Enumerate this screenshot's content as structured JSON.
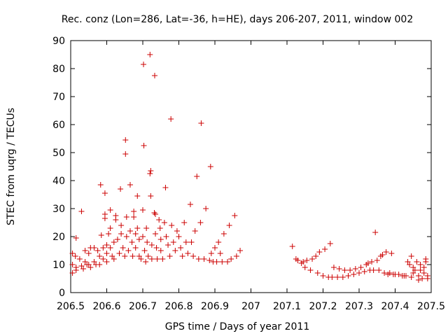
{
  "chart_data": {
    "type": "scatter",
    "title": "Rec. conz (Lon=286, Lat=-36, h=HE), days 206-207, 2011, window 002",
    "xlabel": "GPS time / Days of year 2011",
    "ylabel": "STEC from uqrg / TECUs",
    "xlim": [
      206.5,
      207.5
    ],
    "ylim": [
      0,
      90
    ],
    "xticks": [
      "206.5",
      "206.6",
      "206.7",
      "206.8",
      "206.9",
      "207",
      "207.1",
      "207.2",
      "207.3",
      "207.4",
      "207.5"
    ],
    "yticks": [
      "0",
      "10",
      "20",
      "30",
      "40",
      "50",
      "60",
      "70",
      "80",
      "90"
    ],
    "marker": "+",
    "color": "#cc0000",
    "grid": false,
    "series": [
      {
        "points": [
          [
            206.505,
            14
          ],
          [
            206.505,
            10
          ],
          [
            206.505,
            7
          ],
          [
            206.513,
            13
          ],
          [
            206.515,
            19.5
          ],
          [
            206.515,
            9
          ],
          [
            206.515,
            8
          ],
          [
            206.525,
            12
          ],
          [
            206.53,
            29
          ],
          [
            206.53,
            9.5
          ],
          [
            206.535,
            8.5
          ],
          [
            206.54,
            15
          ],
          [
            206.54,
            11
          ],
          [
            206.545,
            10
          ],
          [
            206.55,
            14
          ],
          [
            206.55,
            10
          ],
          [
            206.555,
            16
          ],
          [
            206.555,
            9
          ],
          [
            206.565,
            16
          ],
          [
            206.565,
            11
          ],
          [
            206.57,
            10
          ],
          [
            206.575,
            15
          ],
          [
            206.58,
            13
          ],
          [
            206.58,
            10
          ],
          [
            206.583,
            38.5
          ],
          [
            206.585,
            20.5
          ],
          [
            206.59,
            12
          ],
          [
            206.59,
            16
          ],
          [
            206.595,
            35.5
          ],
          [
            206.595,
            26.5
          ],
          [
            206.595,
            28
          ],
          [
            206.6,
            17
          ],
          [
            206.6,
            14
          ],
          [
            206.6,
            11
          ],
          [
            206.605,
            21
          ],
          [
            206.61,
            29.5
          ],
          [
            206.61,
            23
          ],
          [
            206.61,
            16
          ],
          [
            206.615,
            13
          ],
          [
            206.62,
            18
          ],
          [
            206.62,
            12
          ],
          [
            206.625,
            26
          ],
          [
            206.625,
            27.5
          ],
          [
            206.63,
            19
          ],
          [
            206.635,
            14
          ],
          [
            206.638,
            37
          ],
          [
            206.64,
            24
          ],
          [
            206.64,
            21
          ],
          [
            206.645,
            16
          ],
          [
            206.65,
            13
          ],
          [
            206.652,
            54.5
          ],
          [
            206.652,
            49.5
          ],
          [
            206.655,
            27
          ],
          [
            206.655,
            20
          ],
          [
            206.66,
            15
          ],
          [
            206.665,
            38.5
          ],
          [
            206.665,
            22
          ],
          [
            206.67,
            18
          ],
          [
            206.672,
            13
          ],
          [
            206.675,
            29
          ],
          [
            206.675,
            27
          ],
          [
            206.68,
            21
          ],
          [
            206.68,
            16
          ],
          [
            206.685,
            34.5
          ],
          [
            206.685,
            23
          ],
          [
            206.69,
            19
          ],
          [
            206.69,
            13
          ],
          [
            206.695,
            12
          ],
          [
            206.7,
            29.5
          ],
          [
            206.7,
            20
          ],
          [
            206.702,
            81.5
          ],
          [
            206.703,
            52.5
          ],
          [
            206.705,
            15
          ],
          [
            206.708,
            11
          ],
          [
            206.71,
            23
          ],
          [
            206.712,
            18
          ],
          [
            206.715,
            13
          ],
          [
            206.72,
            85
          ],
          [
            206.72,
            42.5
          ],
          [
            206.722,
            43.5
          ],
          [
            206.722,
            34.5
          ],
          [
            206.725,
            17
          ],
          [
            206.725,
            12
          ],
          [
            206.732,
            28.5
          ],
          [
            206.733,
            77.5
          ],
          [
            206.735,
            28
          ],
          [
            206.735,
            21
          ],
          [
            206.738,
            16
          ],
          [
            206.74,
            12
          ],
          [
            206.745,
            26
          ],
          [
            206.748,
            23
          ],
          [
            206.75,
            19
          ],
          [
            206.75,
            15
          ],
          [
            206.755,
            12
          ],
          [
            206.76,
            25
          ],
          [
            206.763,
            37.5
          ],
          [
            206.765,
            20
          ],
          [
            206.77,
            17
          ],
          [
            206.775,
            13
          ],
          [
            206.778,
            62
          ],
          [
            206.78,
            24
          ],
          [
            206.785,
            18
          ],
          [
            206.79,
            15
          ],
          [
            206.795,
            22
          ],
          [
            206.8,
            20
          ],
          [
            206.805,
            16
          ],
          [
            206.81,
            13
          ],
          [
            206.815,
            25
          ],
          [
            206.82,
            18
          ],
          [
            206.825,
            14
          ],
          [
            206.832,
            31.5
          ],
          [
            206.835,
            18
          ],
          [
            206.84,
            13
          ],
          [
            206.845,
            22
          ],
          [
            206.85,
            41.5
          ],
          [
            206.855,
            12
          ],
          [
            206.86,
            25
          ],
          [
            206.862,
            60.5
          ],
          [
            206.87,
            12
          ],
          [
            206.875,
            30
          ],
          [
            206.885,
            11.5
          ],
          [
            206.888,
            45
          ],
          [
            206.89,
            14
          ],
          [
            206.895,
            11
          ],
          [
            206.9,
            16
          ],
          [
            206.905,
            11
          ],
          [
            206.91,
            18
          ],
          [
            206.915,
            14
          ],
          [
            206.92,
            11
          ],
          [
            206.925,
            21
          ],
          [
            206.935,
            11
          ],
          [
            206.94,
            24
          ],
          [
            206.945,
            12
          ],
          [
            206.955,
            27.5
          ],
          [
            206.96,
            13
          ],
          [
            206.97,
            15
          ],
          [
            207.115,
            16.5
          ],
          [
            207.125,
            12
          ],
          [
            207.13,
            11.5
          ],
          [
            207.14,
            10.5
          ],
          [
            207.145,
            11
          ],
          [
            207.15,
            9
          ],
          [
            207.155,
            11.5
          ],
          [
            207.165,
            8
          ],
          [
            207.17,
            12
          ],
          [
            207.18,
            13
          ],
          [
            207.185,
            7
          ],
          [
            207.19,
            14.5
          ],
          [
            207.2,
            6
          ],
          [
            207.205,
            15.5
          ],
          [
            207.215,
            5.5
          ],
          [
            207.22,
            17.5
          ],
          [
            207.225,
            5.5
          ],
          [
            207.23,
            9
          ],
          [
            207.24,
            5.5
          ],
          [
            207.245,
            8.5
          ],
          [
            207.255,
            5.5
          ],
          [
            207.26,
            8
          ],
          [
            207.27,
            6
          ],
          [
            207.275,
            8
          ],
          [
            207.285,
            6.5
          ],
          [
            207.29,
            8.5
          ],
          [
            207.3,
            7
          ],
          [
            207.305,
            9
          ],
          [
            207.315,
            7.5
          ],
          [
            207.32,
            10
          ],
          [
            207.325,
            10.5
          ],
          [
            207.33,
            8
          ],
          [
            207.335,
            11
          ],
          [
            207.34,
            8
          ],
          [
            207.345,
            21.5
          ],
          [
            207.35,
            11.5
          ],
          [
            207.355,
            8
          ],
          [
            207.36,
            13
          ],
          [
            207.365,
            13.5
          ],
          [
            207.37,
            7
          ],
          [
            207.375,
            14.5
          ],
          [
            207.38,
            6.5
          ],
          [
            207.385,
            7
          ],
          [
            207.39,
            14
          ],
          [
            207.395,
            6.5
          ],
          [
            207.4,
            6.5
          ],
          [
            207.41,
            6.5
          ],
          [
            207.42,
            6
          ],
          [
            207.425,
            6
          ],
          [
            207.43,
            6
          ],
          [
            207.435,
            11
          ],
          [
            207.44,
            10
          ],
          [
            207.445,
            5.5
          ],
          [
            207.445,
            13
          ],
          [
            207.45,
            7
          ],
          [
            207.45,
            9
          ],
          [
            207.455,
            8
          ],
          [
            207.46,
            11
          ],
          [
            207.465,
            4.5
          ],
          [
            207.465,
            6
          ],
          [
            207.47,
            10
          ],
          [
            207.47,
            8
          ],
          [
            207.475,
            5
          ],
          [
            207.48,
            7
          ],
          [
            207.48,
            9
          ],
          [
            207.485,
            11
          ],
          [
            207.485,
            12
          ],
          [
            207.49,
            6
          ],
          [
            207.49,
            5
          ]
        ]
      }
    ]
  }
}
